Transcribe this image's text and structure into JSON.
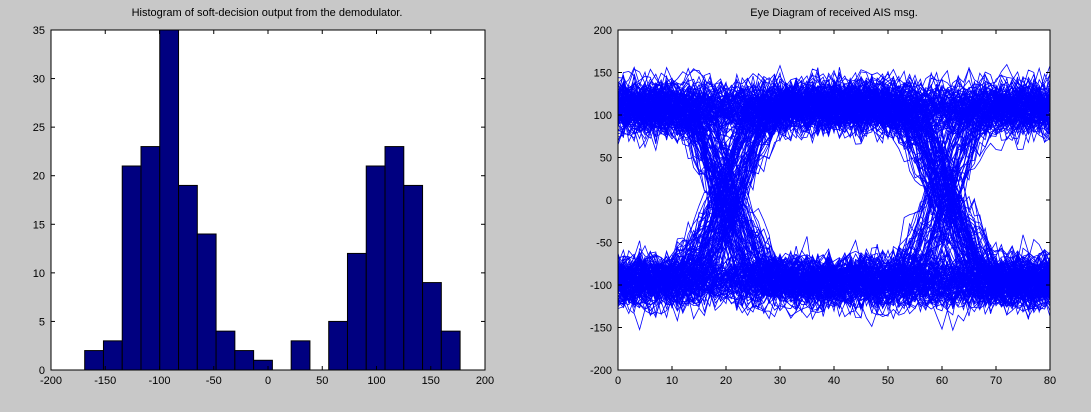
{
  "figure": {
    "background": "#c8c8c8"
  },
  "chart_data": [
    {
      "type": "bar",
      "title": "Histogram of soft-decision output from the demodulator.",
      "xlabel": "",
      "ylabel": "",
      "xlim": [
        -200,
        200
      ],
      "ylim": [
        0,
        35
      ],
      "xticks": [
        "-200",
        "-150",
        "-100",
        "-50",
        "0",
        "50",
        "100",
        "150",
        "200"
      ],
      "yticks": [
        "0",
        "5",
        "10",
        "15",
        "20",
        "25",
        "30",
        "35"
      ],
      "bar_color": "#000080",
      "bin_width": 17.3,
      "centers": [
        -160.3,
        -143.0,
        -125.7,
        -108.4,
        -91.1,
        -73.8,
        -56.5,
        -39.2,
        -21.9,
        -4.6,
        12.7,
        30.0,
        47.3,
        64.6,
        81.9,
        99.2,
        116.5,
        133.8,
        151.1,
        168.4
      ],
      "values": [
        2,
        3,
        21,
        23,
        35,
        19,
        14,
        4,
        2,
        1,
        0,
        3,
        0,
        5,
        12,
        21,
        23,
        19,
        9,
        4
      ]
    },
    {
      "type": "line",
      "title": "Eye Diagram of received AIS msg.",
      "xlabel": "",
      "ylabel": "",
      "xlim": [
        0,
        80
      ],
      "ylim": [
        -200,
        200
      ],
      "xticks": [
        "0",
        "10",
        "20",
        "30",
        "40",
        "50",
        "60",
        "70",
        "80"
      ],
      "yticks": [
        "-200",
        "-150",
        "-100",
        "-50",
        "0",
        "50",
        "100",
        "150",
        "200"
      ],
      "line_color": "#0000ff",
      "levels": [
        110,
        -95
      ],
      "transitions_at": [
        20,
        60
      ],
      "noise_amplitude": 32,
      "trace_count": 300
    }
  ]
}
